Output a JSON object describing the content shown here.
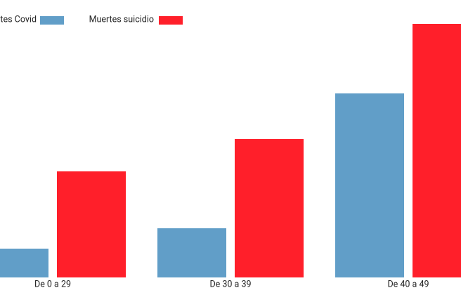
{
  "chart_data": {
    "type": "bar",
    "categories": [
      "De 0 a 29",
      "De 30 a 39",
      "De 40 a 49"
    ],
    "series": [
      {
        "name": "Muertes Covid",
        "color": "#619ec8",
        "values": [
          41,
          70,
          262
        ]
      },
      {
        "name": "Muertes suicidio",
        "color": "#ff1f2a",
        "values": [
          151,
          197,
          361
        ]
      }
    ],
    "ylim": [
      0,
      370
    ]
  }
}
